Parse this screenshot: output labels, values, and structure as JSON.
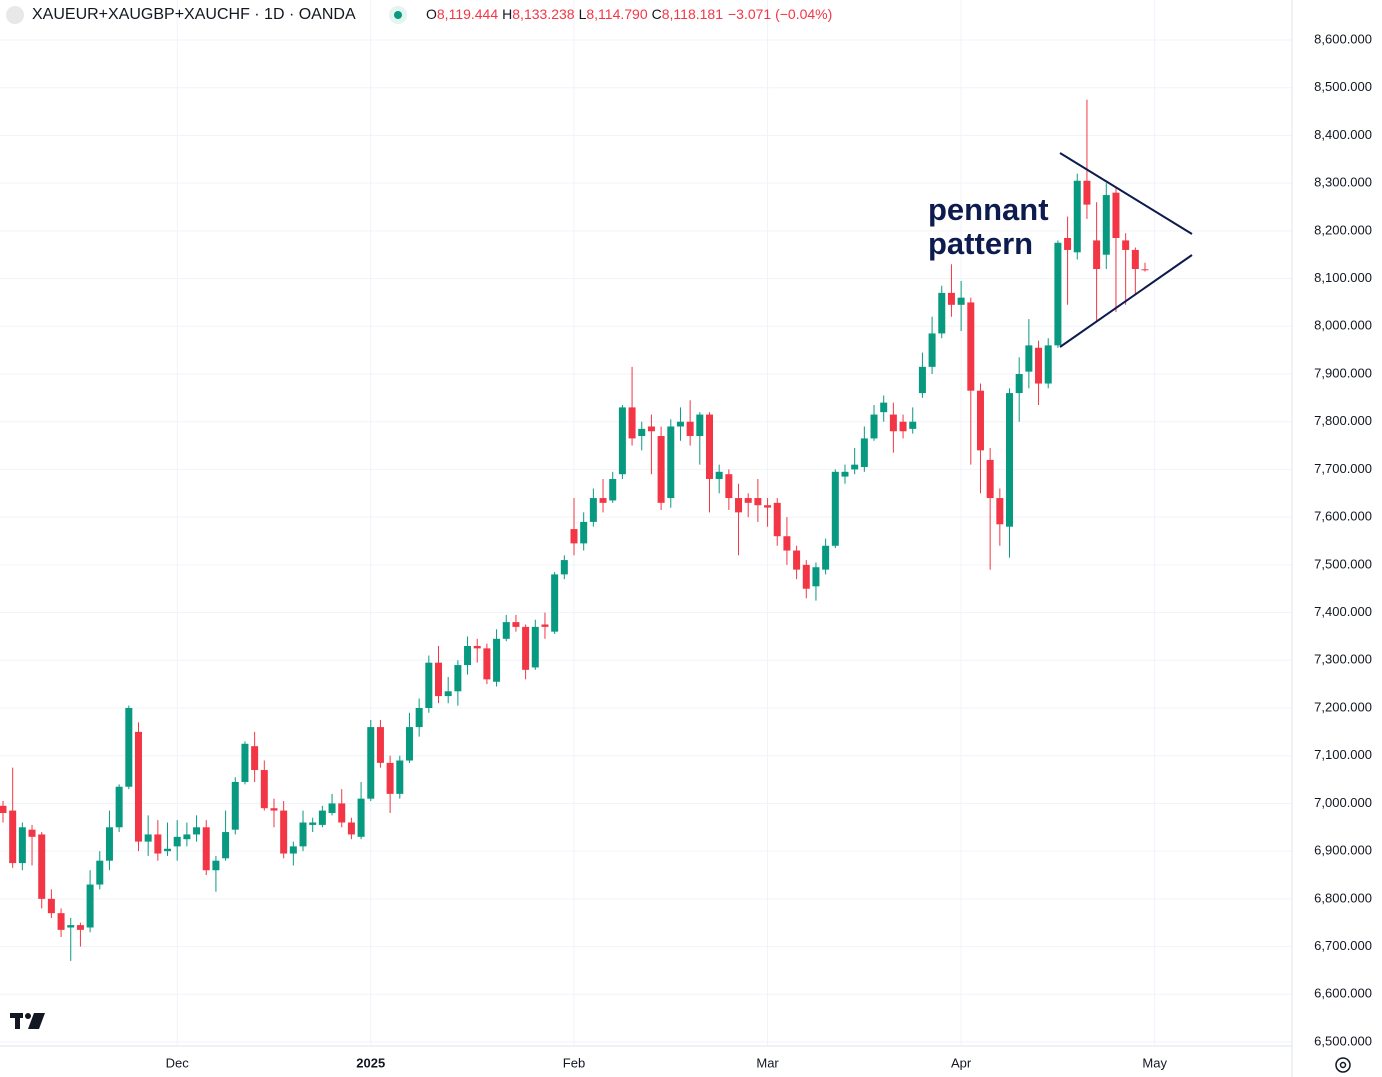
{
  "header": {
    "title": "XAUEUR+XAUGBP+XAUCHF · 1D · OANDA",
    "ohlc": [
      {
        "key": "O",
        "value": "8,119.444"
      },
      {
        "key": "H",
        "value": "8,133.238"
      },
      {
        "key": "L",
        "value": "8,114.790"
      },
      {
        "key": "C",
        "value": "8,118.181"
      }
    ],
    "change": "−3.071 (−0.04%)"
  },
  "chart_data": {
    "type": "candlestick",
    "annotation": [
      "pennant",
      "pattern"
    ],
    "up_color": "#089981",
    "down_color": "#f23645",
    "grid": true,
    "categories": [
      null,
      null,
      null,
      null,
      null,
      null,
      null,
      null,
      null,
      null,
      null,
      null,
      null,
      null,
      null,
      null,
      null,
      null,
      "Dec",
      null,
      null,
      null,
      null,
      null,
      null,
      null,
      null,
      null,
      null,
      null,
      null,
      null,
      null,
      null,
      null,
      null,
      null,
      null,
      "2025",
      null,
      null,
      null,
      null,
      null,
      null,
      null,
      null,
      null,
      null,
      null,
      null,
      null,
      null,
      null,
      null,
      null,
      null,
      null,
      null,
      "Feb",
      null,
      null,
      null,
      null,
      null,
      null,
      null,
      null,
      null,
      null,
      null,
      null,
      null,
      null,
      null,
      null,
      null,
      null,
      null,
      "Mar",
      null,
      null,
      null,
      null,
      null,
      null,
      null,
      null,
      null,
      null,
      null,
      null,
      null,
      null,
      null,
      null,
      null,
      null,
      null,
      "Apr",
      null,
      null,
      null,
      null,
      null,
      null,
      null,
      null,
      null,
      null,
      null,
      null,
      null,
      null,
      null,
      null,
      null,
      null,
      null,
      "May"
    ],
    "open": [
      6995,
      6985,
      6875,
      6945,
      6935,
      6800,
      6770,
      6740,
      6745,
      6740,
      6830,
      6880,
      6950,
      7035,
      7150,
      6920,
      6935,
      6900,
      6910,
      6925,
      6935,
      6950,
      6860,
      6885,
      6945,
      7045,
      7120,
      7070,
      6990,
      6985,
      6895,
      6910,
      6955,
      6955,
      6980,
      7000,
      6960,
      6930,
      7010,
      7160,
      7085,
      7020,
      7090,
      7160,
      7200,
      7295,
      7225,
      7235,
      7290,
      7330,
      7325,
      7255,
      7345,
      7380,
      7370,
      7285,
      7375,
      7360,
      7480,
      7575,
      7545,
      7590,
      7640,
      7635,
      7690,
      7830,
      7770,
      7790,
      7770,
      7640,
      7790,
      7800,
      7770,
      7815,
      7680,
      7690,
      7640,
      7640,
      7640,
      7625,
      7630,
      7560,
      7530,
      7500,
      7455,
      7490,
      7540,
      7685,
      7700,
      7705,
      7765,
      7820,
      7815,
      7800,
      7785,
      7860,
      7915,
      7985,
      8070,
      8045,
      8050,
      7865,
      7720,
      7640,
      7580,
      7860,
      7905,
      7955,
      7880,
      7960,
      8185,
      8155,
      8305,
      8180,
      8150,
      8280,
      8180,
      8160,
      8119.444,
      null
    ],
    "high": [
      7005,
      7075,
      6960,
      6955,
      6940,
      6820,
      6780,
      6760,
      6750,
      6860,
      6900,
      6985,
      7040,
      7205,
      7170,
      6975,
      6965,
      6960,
      6965,
      6960,
      6975,
      6965,
      6890,
      6985,
      7055,
      7130,
      7150,
      7090,
      7010,
      7005,
      6920,
      6985,
      6970,
      6995,
      7020,
      7030,
      6970,
      7045,
      7175,
      7175,
      7100,
      7100,
      7190,
      7220,
      7310,
      7330,
      7265,
      7300,
      7350,
      7345,
      7335,
      7365,
      7395,
      7395,
      7375,
      7385,
      7400,
      7485,
      7520,
      7640,
      7610,
      7660,
      7680,
      7695,
      7835,
      7915,
      7800,
      7815,
      7790,
      7805,
      7830,
      7845,
      7820,
      7820,
      7710,
      7700,
      7670,
      7650,
      7680,
      7640,
      7640,
      7600,
      7540,
      7510,
      7505,
      7555,
      7700,
      7710,
      7745,
      7790,
      7835,
      7855,
      7840,
      7815,
      7830,
      7945,
      8020,
      8085,
      8130,
      8095,
      8060,
      7880,
      7745,
      7660,
      7870,
      7935,
      8015,
      7970,
      7975,
      8180,
      8230,
      8320,
      8475,
      8260,
      8300,
      8290,
      8195,
      8165,
      8133.238,
      null
    ],
    "low": [
      6960,
      6865,
      6860,
      6870,
      6780,
      6760,
      6720,
      6670,
      6700,
      6730,
      6820,
      6860,
      6940,
      7030,
      6900,
      6890,
      6880,
      6890,
      6880,
      6910,
      6920,
      6850,
      6815,
      6880,
      6935,
      7040,
      7045,
      6985,
      6950,
      6885,
      6870,
      6900,
      6940,
      6950,
      6975,
      6950,
      6925,
      6925,
      7005,
      7075,
      6980,
      7010,
      7085,
      7140,
      7190,
      7210,
      7210,
      7205,
      7270,
      7295,
      7250,
      7245,
      7340,
      7360,
      7260,
      7280,
      7345,
      7355,
      7470,
      7520,
      7530,
      7580,
      7610,
      7630,
      7680,
      7750,
      7740,
      7690,
      7615,
      7620,
      7760,
      7750,
      7710,
      7610,
      7650,
      7615,
      7520,
      7600,
      7590,
      7580,
      7540,
      7500,
      7470,
      7430,
      7425,
      7480,
      7535,
      7670,
      7690,
      7695,
      7760,
      7800,
      7735,
      7765,
      7775,
      7850,
      7900,
      7975,
      8020,
      7990,
      7710,
      7650,
      7490,
      7540,
      7515,
      7800,
      7870,
      7835,
      7870,
      7955,
      8045,
      8140,
      8225,
      8010,
      8120,
      8030,
      8045,
      8065,
      8114.79,
      null
    ],
    "close": [
      6980,
      6875,
      6950,
      6930,
      6800,
      6770,
      6735,
      6745,
      6735,
      6830,
      6880,
      6950,
      7035,
      7200,
      6920,
      6935,
      6895,
      6905,
      6930,
      6935,
      6950,
      6860,
      6880,
      6940,
      7045,
      7125,
      7070,
      6990,
      6985,
      6895,
      6910,
      6960,
      6960,
      6985,
      7000,
      6960,
      6935,
      7010,
      7160,
      7085,
      7020,
      7090,
      7160,
      7200,
      7295,
      7225,
      7235,
      7290,
      7330,
      7325,
      7260,
      7345,
      7380,
      7370,
      7280,
      7370,
      7370,
      7480,
      7510,
      7545,
      7590,
      7640,
      7630,
      7680,
      7830,
      7765,
      7785,
      7780,
      7630,
      7790,
      7800,
      7770,
      7815,
      7680,
      7695,
      7640,
      7610,
      7630,
      7625,
      7620,
      7560,
      7530,
      7490,
      7450,
      7495,
      7540,
      7695,
      7695,
      7710,
      7765,
      7815,
      7840,
      7780,
      7780,
      7800,
      7915,
      7985,
      8070,
      8045,
      8060,
      7865,
      7740,
      7640,
      7585,
      7860,
      7900,
      7960,
      7880,
      7960,
      8175,
      8160,
      8305,
      8255,
      8120,
      8275,
      8185,
      8160,
      8120,
      8118.181,
      null
    ],
    "ylim": [
      6500,
      8600
    ],
    "yticks": [
      {
        "value": 6500,
        "label": "6,500.000"
      },
      {
        "value": 6600,
        "label": "6,600.000"
      },
      {
        "value": 6700,
        "label": "6,700.000"
      },
      {
        "value": 6800,
        "label": "6,800.000"
      },
      {
        "value": 6900,
        "label": "6,900.000"
      },
      {
        "value": 7000,
        "label": "7,000.000"
      },
      {
        "value": 7100,
        "label": "7,100.000"
      },
      {
        "value": 7200,
        "label": "7,200.000"
      },
      {
        "value": 7300,
        "label": "7,300.000"
      },
      {
        "value": 7400,
        "label": "7,400.000"
      },
      {
        "value": 7500,
        "label": "7,500.000"
      },
      {
        "value": 7600,
        "label": "7,600.000"
      },
      {
        "value": 7700,
        "label": "7,700.000"
      },
      {
        "value": 7800,
        "label": "7,800.000"
      },
      {
        "value": 7900,
        "label": "7,900.000"
      },
      {
        "value": 8000,
        "label": "8,000.000"
      },
      {
        "value": 8100,
        "label": "8,100.000"
      },
      {
        "value": 8200,
        "label": "8,200.000"
      },
      {
        "value": 8300,
        "label": "8,300.000"
      },
      {
        "value": 8400,
        "label": "8,400.000"
      },
      {
        "value": 8500,
        "label": "8,500.000"
      },
      {
        "value": 8600,
        "label": "8,600.000"
      }
    ]
  }
}
